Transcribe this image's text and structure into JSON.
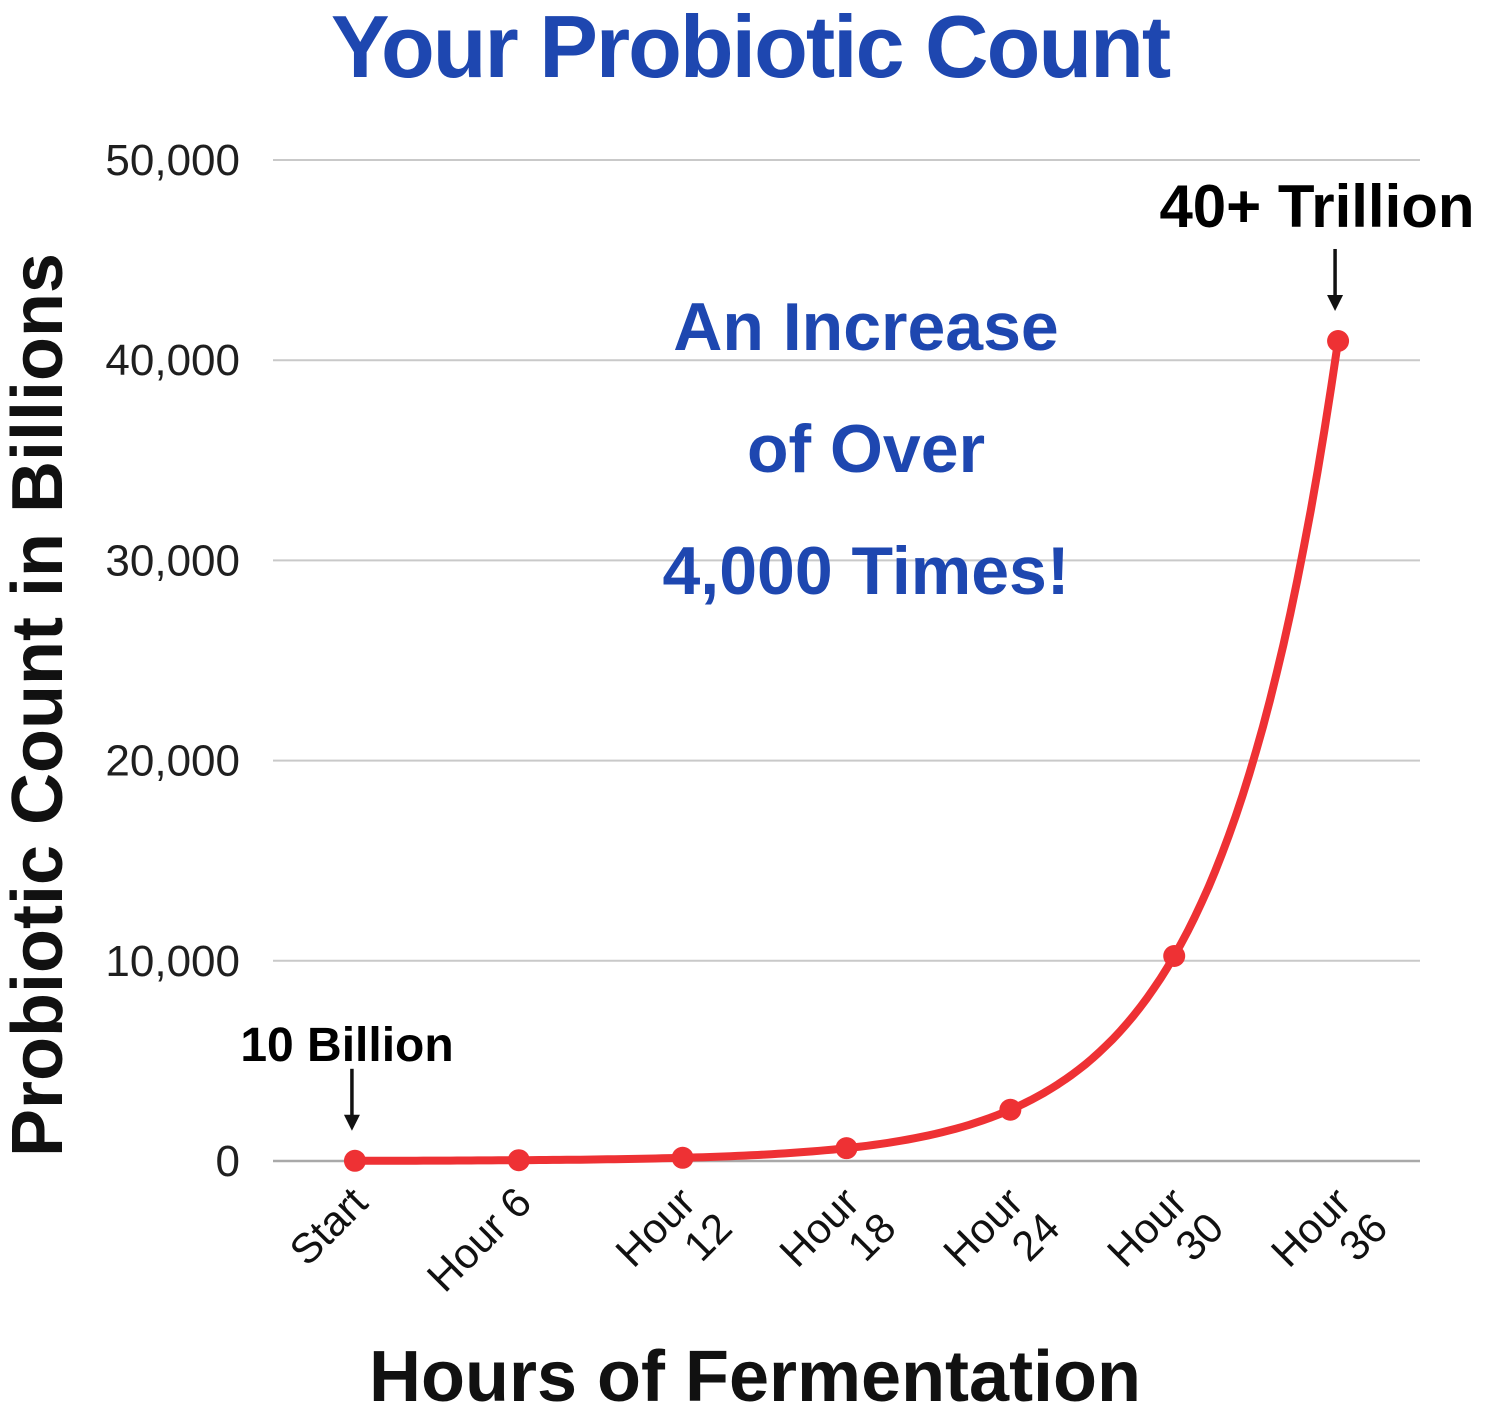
{
  "title": "Your Probiotic Count",
  "colors": {
    "accent_blue": "#1e47b0",
    "line_red": "#ee3134",
    "gridline": "#c9c9c9",
    "zero_line": "#a9a9a9",
    "text_black": "#111111"
  },
  "chart_data": {
    "type": "line",
    "title": "Your Probiotic Count",
    "xlabel": "Hours of Fermentation",
    "ylabel": "Probiotic Count in Billions",
    "categories": [
      "Start",
      "Hour 6",
      "Hour 12",
      "Hour 18",
      "Hour 24",
      "Hour 30",
      "Hour 36"
    ],
    "category_label_lines": [
      [
        "Start"
      ],
      [
        "Hour 6"
      ],
      [
        "Hour",
        "12"
      ],
      [
        "Hour",
        "18"
      ],
      [
        "Hour",
        "24"
      ],
      [
        "Hour",
        "30"
      ],
      [
        "Hour",
        "36"
      ]
    ],
    "values": [
      10,
      40,
      160,
      640,
      2560,
      10240,
      40960
    ],
    "ylim": [
      0,
      50000
    ],
    "ytick_step": 10000,
    "ytick_labels": [
      "0",
      "10,000",
      "20,000",
      "30,000",
      "40,000",
      "50,000"
    ],
    "grid": "horizontal",
    "legend": "none",
    "line_interpolation": "exponential-smooth",
    "annotations": [
      {
        "text": "10 Billion",
        "point_index": 0
      },
      {
        "text": "40+ Trillion",
        "point_index": 6
      },
      {
        "text_lines": [
          "An Increase",
          "of Over",
          "4,000 Times!"
        ],
        "type": "center-callout"
      }
    ]
  }
}
